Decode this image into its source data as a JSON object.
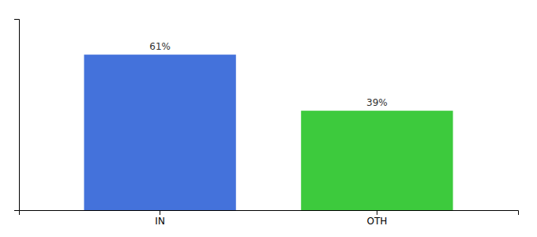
{
  "chart_data": {
    "type": "bar",
    "categories": [
      "IN",
      "OTH"
    ],
    "values": [
      61,
      39
    ],
    "value_labels": [
      "61%",
      "39%"
    ],
    "data_labels": true,
    "colors": [
      "#4472db",
      "#3dca3d"
    ],
    "ylim": [
      0,
      75
    ],
    "tick_labels": "x",
    "grid": false
  }
}
